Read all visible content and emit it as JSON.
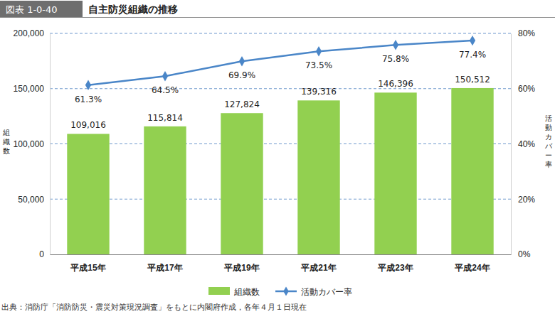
{
  "chart_data": {
    "type": "bar",
    "figure_number": "図表 1-0-40",
    "title": "自主防災組織の推移",
    "source": "出典：消防庁「消防防災・震災対策現況調査」をもとに内閣府作成，各年４月１日現在",
    "y_label": "組織数",
    "y2_label": "活動カバー率",
    "categories": [
      "平成15年",
      "平成17年",
      "平成19年",
      "平成21年",
      "平成23年",
      "平成24年"
    ],
    "series": [
      {
        "name": "組織数",
        "type": "bar",
        "color": "#92d050",
        "values": [
          109016,
          115814,
          127824,
          139316,
          146396,
          150512
        ],
        "value_labels": [
          "109,016",
          "115,814",
          "127,824",
          "139,316",
          "146,396",
          "150,512"
        ]
      },
      {
        "name": "活動カバー率",
        "type": "line",
        "axis": "y2",
        "color": "#4a86c8",
        "marker": "diamond",
        "values": [
          61.3,
          64.5,
          69.9,
          73.5,
          75.8,
          77.4
        ],
        "value_labels": [
          "61.3%",
          "64.5%",
          "69.9%",
          "73.5%",
          "75.8%",
          "77.4%"
        ]
      }
    ],
    "ylim": [
      0,
      200000
    ],
    "yticks": [
      0,
      {
        "value": 50000,
        "label": "50,000"
      },
      {
        "value": 100000,
        "label": "100,000"
      },
      {
        "value": 150000,
        "label": "150,000"
      },
      {
        "value": 200000,
        "label": "200,000"
      }
    ],
    "y2lim": [
      0,
      80
    ],
    "y2ticks": [
      {
        "value": 0,
        "label": "0%"
      },
      {
        "value": 20,
        "label": "20%"
      },
      {
        "value": 40,
        "label": "40%"
      },
      {
        "value": 60,
        "label": "60%"
      },
      {
        "value": 80,
        "label": "80%"
      }
    ],
    "grid": true,
    "legend": "bottom",
    "data_labels": true
  }
}
